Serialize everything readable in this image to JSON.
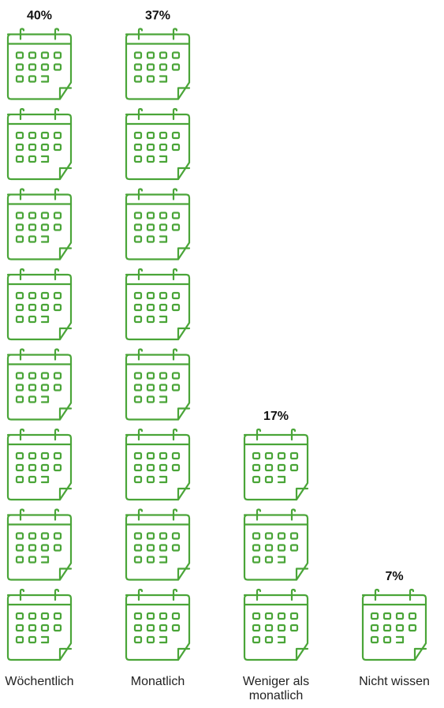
{
  "chart_data": {
    "type": "bar",
    "categories": [
      "Wöchentlich",
      "Monatlich",
      "Weniger als monatlich",
      "Nicht wissen"
    ],
    "category_lines": [
      [
        "Wöchentlich"
      ],
      [
        "Monatlich"
      ],
      [
        "Weniger als",
        "monatlich"
      ],
      [
        "Nicht wissen"
      ]
    ],
    "values": [
      40,
      37,
      17,
      7
    ],
    "value_labels": [
      "40%",
      "37%",
      "17%",
      "7%"
    ],
    "icon_counts": [
      8,
      8,
      3,
      1
    ],
    "unit": "%",
    "icon": "calendar-icon",
    "colors": {
      "icon": "#4aa538",
      "text": "#111111"
    }
  }
}
